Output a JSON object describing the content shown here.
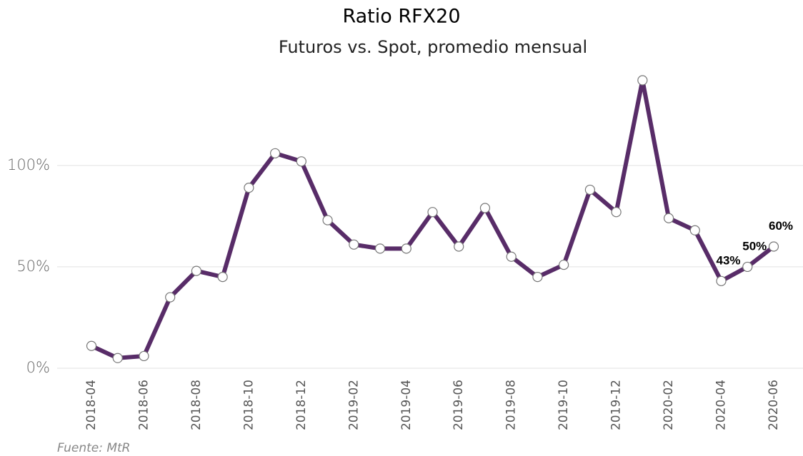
{
  "chart_data": {
    "type": "line",
    "title": "Ratio RFX20",
    "subtitle": "Futuros vs. Spot, promedio mensual",
    "source": "Fuente: MtR",
    "categories": [
      "2018-04",
      null,
      "2018-06",
      null,
      "2018-08",
      null,
      "2018-10",
      null,
      "2018-12",
      null,
      "2019-02",
      null,
      "2019-04",
      null,
      "2019-06",
      null,
      "2019-08",
      null,
      "2019-10",
      null,
      "2019-12",
      null,
      "2020-02",
      null,
      "2020-04",
      null,
      "2020-06"
    ],
    "values": [
      11,
      5,
      6,
      35,
      48,
      45,
      89,
      106,
      102,
      73,
      61,
      59,
      59,
      77,
      60,
      79,
      55,
      45,
      51,
      88,
      77,
      142,
      74,
      68,
      43,
      50,
      60
    ],
    "value_labels": [
      null,
      null,
      null,
      null,
      null,
      null,
      null,
      null,
      null,
      null,
      null,
      null,
      null,
      null,
      null,
      null,
      null,
      null,
      null,
      null,
      null,
      null,
      null,
      null,
      "43%",
      "50%",
      "60%"
    ],
    "color": "#582c68",
    "ylim": [
      -5,
      145
    ],
    "yticks": [
      {
        "value": 0,
        "label": "0%"
      },
      {
        "value": 50,
        "label": "50%"
      },
      {
        "value": 100,
        "label": "100%"
      }
    ],
    "grid": true
  }
}
